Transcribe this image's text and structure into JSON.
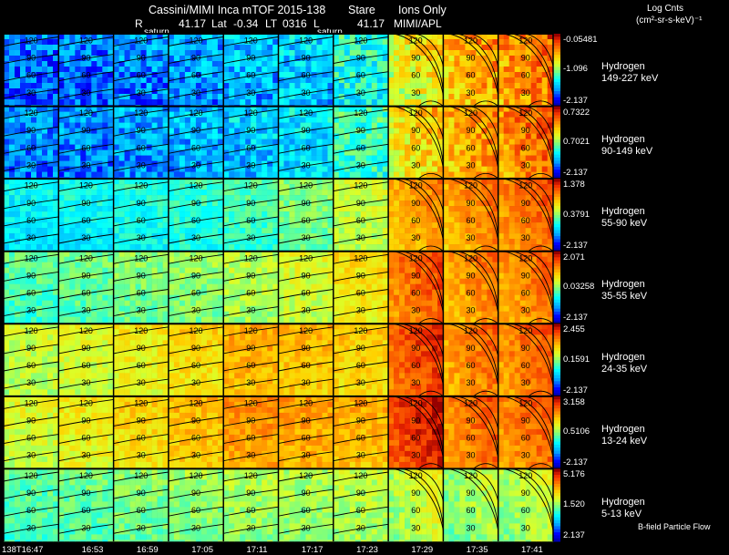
{
  "header": {
    "title": "Cassini/MIMI Inca mTOF  2015-138",
    "mode": "Stare",
    "ions": "Ions Only",
    "r_label": "R",
    "r_value": "41.17",
    "lat_label": "Lat",
    "lat_value": "-0.34",
    "lt_label": "LT",
    "lt_value": "0316",
    "l_label": "L",
    "l_value": "41.17",
    "credit": "MIMI/APL",
    "saturn_marker": "saturn",
    "colorbar_title": "Log Cnts",
    "colorbar_units": "(cm²-sr-s-keV)⁻¹"
  },
  "chart_data": {
    "type": "heatmap",
    "title": "Cassini/MIMI Inca mTOF  2015-138",
    "time_labels": [
      "138T16:47",
      "16:53",
      "16:59",
      "17:05",
      "17:11",
      "17:17",
      "17:23",
      "17:29",
      "17:35",
      "17:41"
    ],
    "contour_labels": [
      "120",
      "90",
      "60",
      "30"
    ],
    "rows": [
      {
        "species": "Hydrogen",
        "energy": "149-227 keV",
        "cmax": "-0.05481",
        "cmid": "-1.096",
        "cmin": "-2.137",
        "level": [
          0.22,
          0.24,
          0.26,
          0.28,
          0.3,
          0.33,
          0.42,
          0.62,
          0.72,
          0.78
        ]
      },
      {
        "species": "Hydrogen",
        "energy": "90-149 keV",
        "cmax": "0.7322",
        "cmid": "0.7021",
        "cmin": "-2.137",
        "level": [
          0.26,
          0.26,
          0.28,
          0.3,
          0.33,
          0.36,
          0.45,
          0.66,
          0.74,
          0.8
        ]
      },
      {
        "species": "Hydrogen",
        "energy": "55-90 keV",
        "cmax": "1.378",
        "cmid": "0.3791",
        "cmin": "-2.137",
        "level": [
          0.38,
          0.4,
          0.42,
          0.44,
          0.47,
          0.52,
          0.6,
          0.74,
          0.76,
          0.8
        ]
      },
      {
        "species": "Hydrogen",
        "energy": "35-55 keV",
        "cmax": "2.071",
        "cmid": "0.03258",
        "cmin": "-2.137",
        "level": [
          0.48,
          0.5,
          0.52,
          0.54,
          0.58,
          0.62,
          0.68,
          0.82,
          0.76,
          0.78
        ]
      },
      {
        "species": "Hydrogen",
        "energy": "24-35 keV",
        "cmax": "2.455",
        "cmid": "0.1591",
        "cmin": "-2.137",
        "level": [
          0.6,
          0.62,
          0.66,
          0.7,
          0.76,
          0.74,
          0.72,
          0.86,
          0.78,
          0.8
        ]
      },
      {
        "species": "Hydrogen",
        "energy": "13-24 keV",
        "cmax": "3.158",
        "cmid": "0.5106",
        "cmin": "-2.137",
        "level": [
          0.62,
          0.66,
          0.7,
          0.74,
          0.8,
          0.78,
          0.76,
          0.9,
          0.8,
          0.8
        ]
      },
      {
        "species": "Hydrogen",
        "energy": "5-13 keV",
        "cmax": "5.176",
        "cmid": "1.520",
        "cmin": "2.137",
        "level": [
          0.48,
          0.5,
          0.52,
          0.54,
          0.56,
          0.56,
          0.58,
          0.56,
          0.52,
          0.54
        ]
      }
    ],
    "footer_note": "B-field Particle Flow"
  }
}
